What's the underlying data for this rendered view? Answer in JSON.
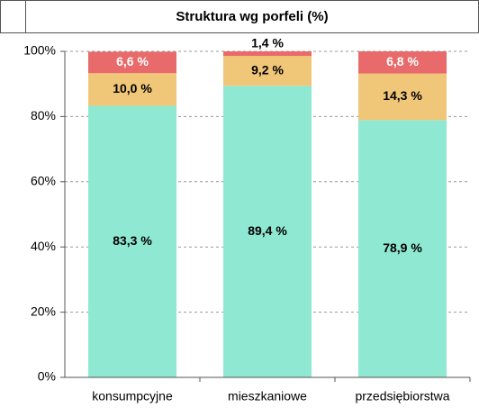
{
  "chart_data": {
    "type": "stacked_bar",
    "title": "Struktura wg porfeli (%)",
    "categories": [
      "konsumpcyjne",
      "mieszkaniowe",
      "przedsiębiorstwa"
    ],
    "series": [
      {
        "color": "#8fe8d2",
        "values": [
          83.3,
          89.4,
          78.9
        ],
        "value_labels": [
          "83,3 %",
          "89,4 %",
          "78,9 %"
        ]
      },
      {
        "color": "#f0c678",
        "values": [
          10.0,
          9.2,
          14.3
        ],
        "value_labels": [
          "10,0 %",
          "9,2 %",
          "14,3 %"
        ]
      },
      {
        "color": "#e86a6a",
        "values": [
          6.6,
          1.4,
          6.8
        ],
        "value_labels": [
          "6,6 %",
          "1,4 %",
          "6,8 %"
        ]
      }
    ],
    "ylim": [
      0,
      100
    ],
    "yticks": [
      {
        "value": 0,
        "label": "0%"
      },
      {
        "value": 20,
        "label": "20%"
      },
      {
        "value": 40,
        "label": "40%"
      },
      {
        "value": 60,
        "label": "60%"
      },
      {
        "value": 80,
        "label": "80%"
      },
      {
        "value": 100,
        "label": "100%"
      }
    ],
    "grid": true
  }
}
